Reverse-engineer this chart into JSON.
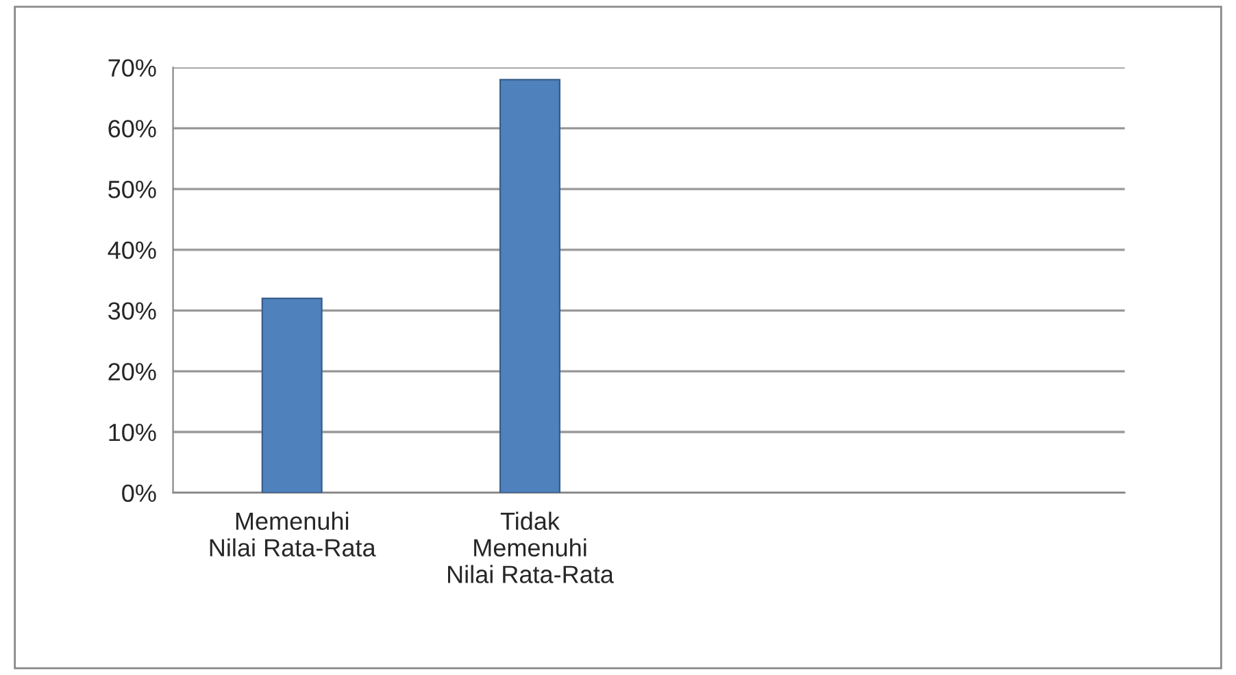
{
  "chart_data": {
    "type": "bar",
    "categories": [
      "Memenuhi\nNilai Rata-Rata",
      "Tidak\nMemenuhi\nNilai Rata-Rata",
      null,
      null
    ],
    "values": [
      32,
      68,
      null,
      null
    ],
    "color": "#4f81bd",
    "ylim": [
      0,
      70
    ],
    "yticks": [
      {
        "value": 0,
        "label": "0%"
      },
      {
        "value": 10,
        "label": "10%"
      },
      {
        "value": 20,
        "label": "20%"
      },
      {
        "value": 30,
        "label": "30%"
      },
      {
        "value": 40,
        "label": "40%"
      },
      {
        "value": 50,
        "label": "50%"
      },
      {
        "value": 60,
        "label": "60%"
      },
      {
        "value": 70,
        "label": "70%"
      }
    ],
    "grid": "y",
    "legend": false
  }
}
